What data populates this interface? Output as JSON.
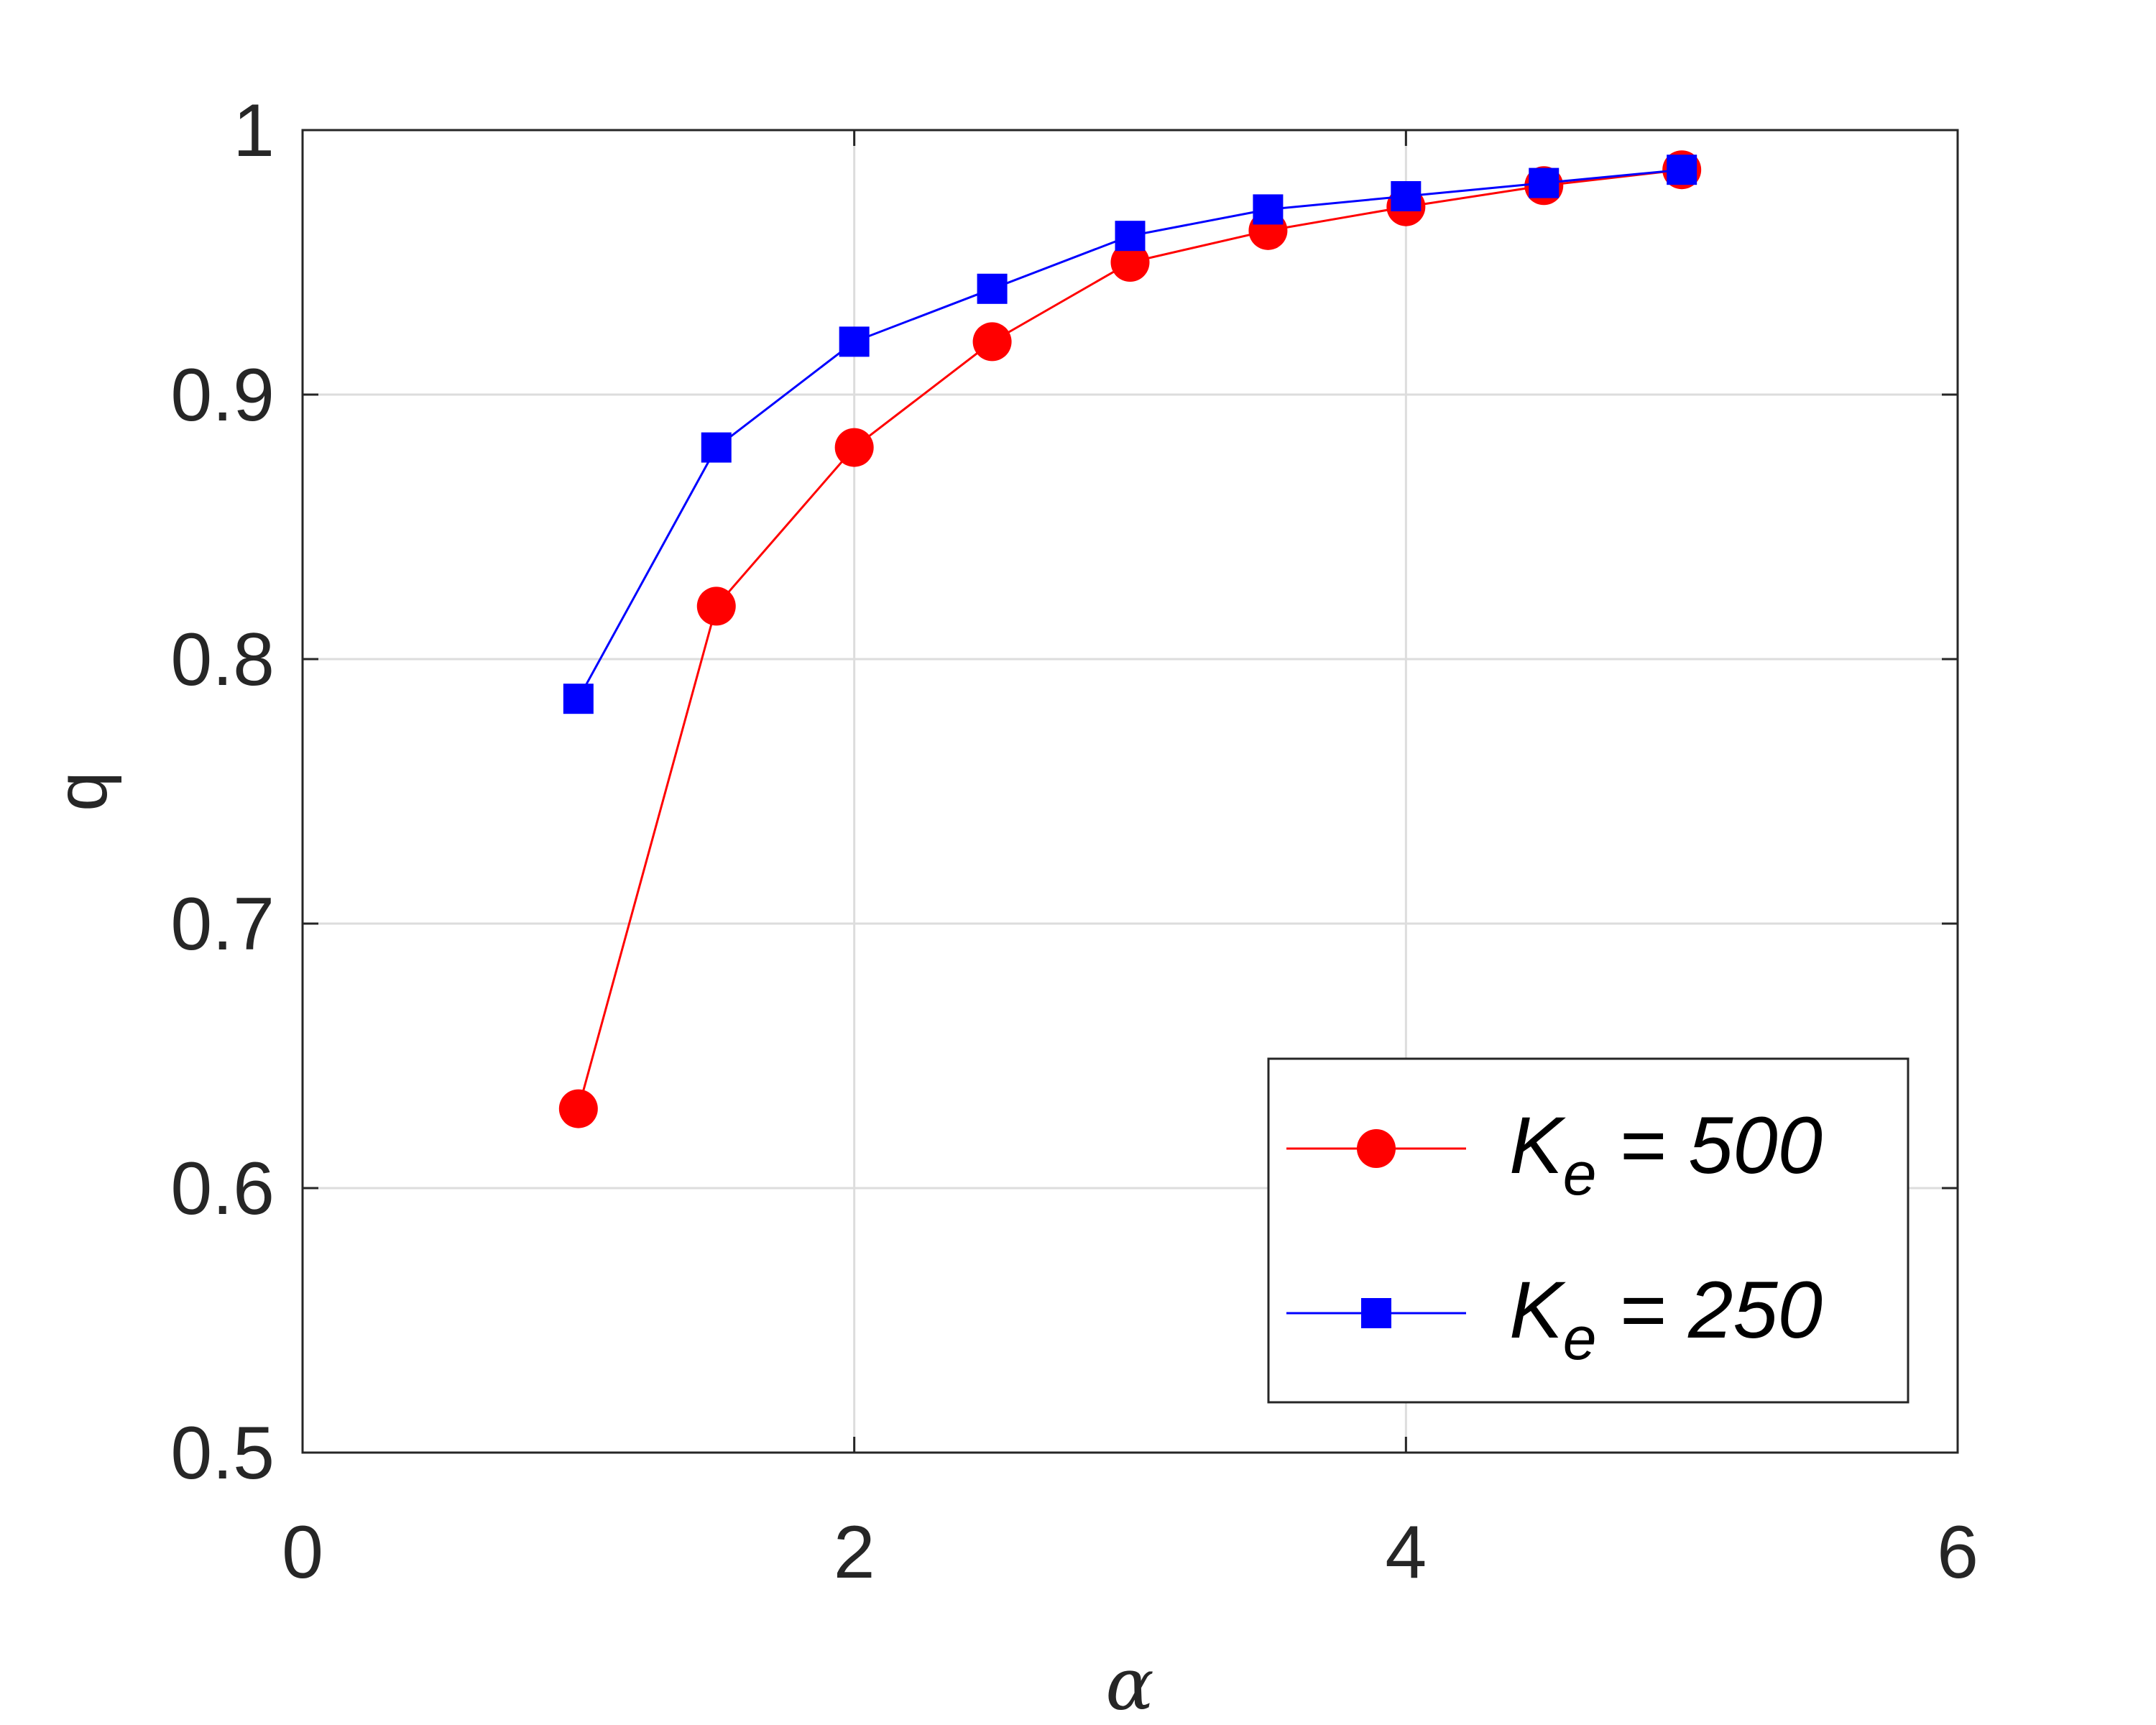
{
  "chart_data": {
    "type": "line",
    "xlabel": "α",
    "ylabel": "q",
    "xlim": [
      0,
      6
    ],
    "ylim": [
      0.5,
      1
    ],
    "xticks": [
      "0",
      "2",
      "4",
      "6"
    ],
    "yticks": [
      "0.5",
      "0.6",
      "0.7",
      "0.8",
      "0.9",
      "1"
    ],
    "grid": true,
    "legend_position": "bottom-right",
    "series": [
      {
        "name": "K_e = 500",
        "legend_main": "K",
        "legend_sub": "e",
        "legend_rest": " = 500",
        "color": "#ff0000",
        "marker": "circle",
        "x": [
          1,
          1.5,
          2,
          2.5,
          3,
          3.5,
          4,
          4.5,
          5
        ],
        "y": [
          0.63,
          0.82,
          0.88,
          0.92,
          0.95,
          0.962,
          0.971,
          0.979,
          0.985
        ]
      },
      {
        "name": "K_e = 250",
        "legend_main": "K",
        "legend_sub": "e",
        "legend_rest": " = 250",
        "color": "#0000ff",
        "marker": "square",
        "x": [
          1,
          1.5,
          2,
          2.5,
          3,
          3.5,
          4,
          4.5,
          5
        ],
        "y": [
          0.785,
          0.88,
          0.92,
          0.94,
          0.96,
          0.97,
          0.975,
          0.98,
          0.985
        ]
      }
    ]
  }
}
